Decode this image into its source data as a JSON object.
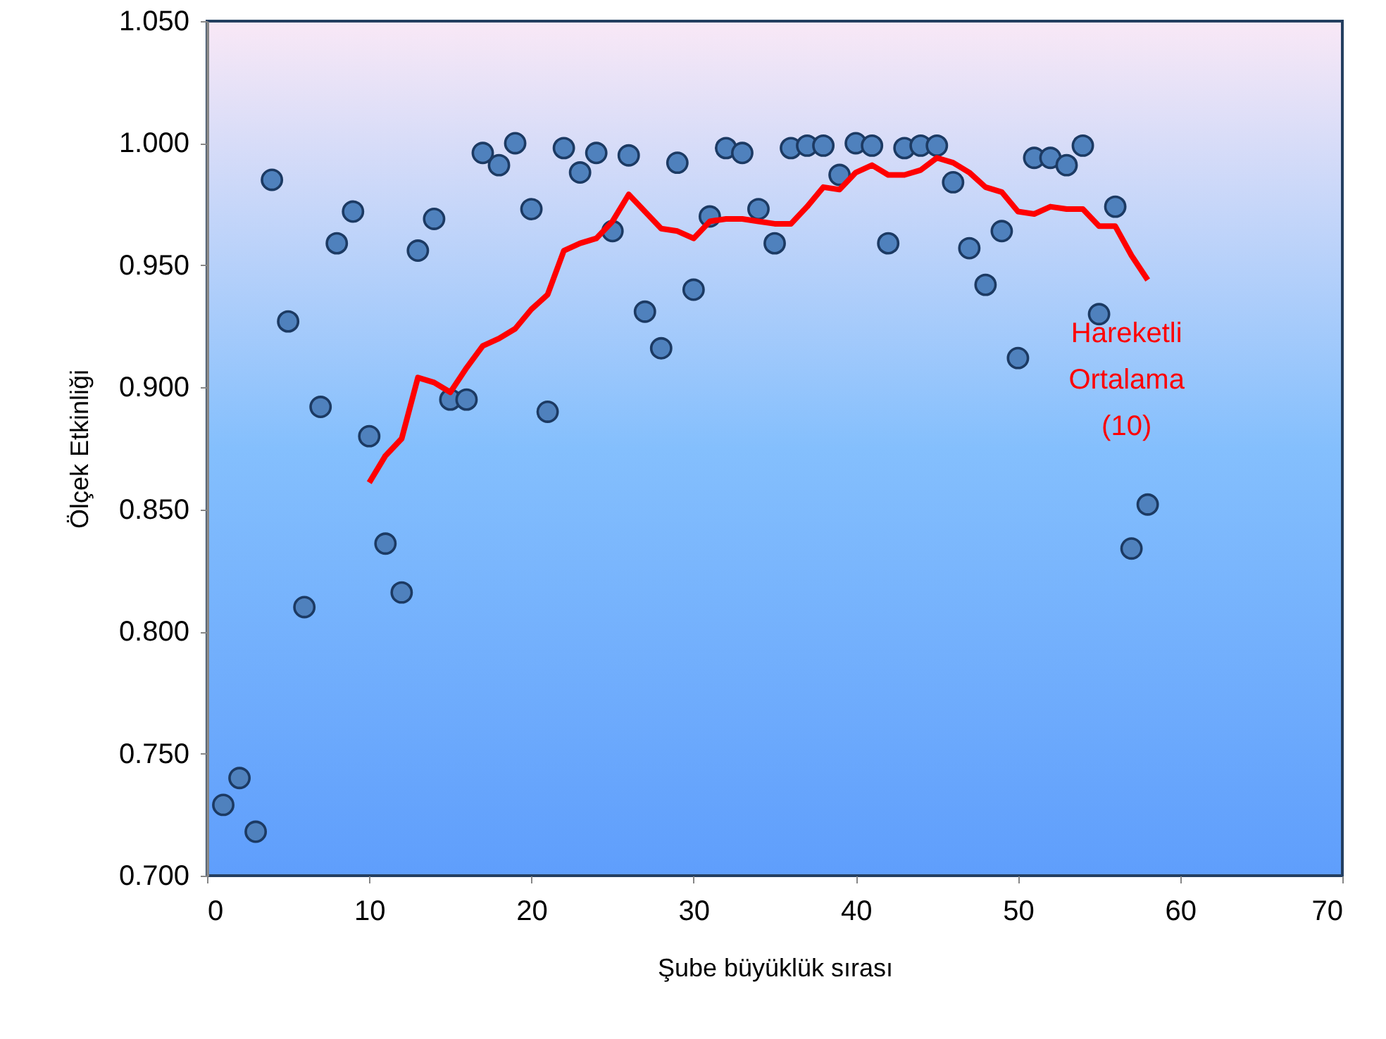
{
  "chart_data": {
    "type": "scatter",
    "xlabel": "Şube büyüklük sırası",
    "ylabel": "Ölçek Etkinliği",
    "xlim": [
      0,
      70
    ],
    "xticks": [
      0,
      10,
      20,
      30,
      40,
      50,
      60,
      70
    ],
    "ylim": [
      0.7,
      1.05
    ],
    "yticks": [
      {
        "value": 0.7,
        "label": "0.700"
      },
      {
        "value": 0.75,
        "label": "0.750"
      },
      {
        "value": 0.8,
        "label": "0.800"
      },
      {
        "value": 0.85,
        "label": "0.850"
      },
      {
        "value": 0.9,
        "label": "0.900"
      },
      {
        "value": 0.95,
        "label": "0.950"
      },
      {
        "value": 1.0,
        "label": "1.000"
      },
      {
        "value": 1.05,
        "label": "1.050"
      }
    ],
    "grid": false,
    "x": [
      1,
      2,
      3,
      4,
      5,
      6,
      7,
      8,
      9,
      10,
      11,
      12,
      13,
      14,
      15,
      16,
      17,
      18,
      19,
      20,
      21,
      22,
      23,
      24,
      25,
      26,
      27,
      28,
      29,
      30,
      31,
      32,
      33,
      34,
      35,
      36,
      37,
      38,
      39,
      40,
      41,
      42,
      43,
      44,
      45,
      46,
      47,
      48,
      49,
      50,
      51,
      52,
      53,
      54,
      55,
      56,
      57,
      58
    ],
    "series": [
      {
        "type": "scatter",
        "color": "#4f81bd",
        "marker": "circle",
        "values": [
          0.729,
          0.74,
          0.718,
          0.985,
          0.927,
          0.81,
          0.892,
          0.959,
          0.972,
          0.88,
          0.836,
          0.816,
          0.956,
          0.969,
          0.895,
          0.895,
          0.996,
          0.991,
          1.0,
          0.973,
          0.89,
          0.998,
          0.988,
          0.996,
          0.964,
          0.995,
          0.931,
          0.916,
          0.992,
          0.94,
          0.97,
          0.998,
          0.996,
          0.973,
          0.959,
          0.998,
          0.999,
          0.999,
          0.987,
          1.0,
          0.999,
          0.959,
          0.998,
          0.999,
          0.999,
          0.984,
          0.957,
          0.942,
          0.964,
          0.912,
          0.994,
          0.994,
          0.991,
          0.999,
          0.93,
          0.974,
          0.834,
          0.852
        ]
      },
      {
        "type": "line",
        "name": "Hareketli Ortalama (10)",
        "color": "#ff0000",
        "line_style": "solid",
        "x": [
          10,
          11,
          12,
          13,
          14,
          15,
          16,
          17,
          18,
          19,
          20,
          21,
          22,
          23,
          24,
          25,
          26,
          27,
          28,
          29,
          30,
          31,
          32,
          33,
          34,
          35,
          36,
          37,
          38,
          39,
          40,
          41,
          42,
          43,
          44,
          45,
          46,
          47,
          48,
          49,
          50,
          51,
          52,
          53,
          54,
          55,
          56,
          57,
          58
        ],
        "values": [
          0.861,
          0.872,
          0.879,
          0.904,
          0.902,
          0.898,
          0.908,
          0.917,
          0.92,
          0.924,
          0.932,
          0.938,
          0.956,
          0.959,
          0.961,
          0.968,
          0.979,
          0.972,
          0.965,
          0.964,
          0.961,
          0.968,
          0.969,
          0.969,
          0.968,
          0.967,
          0.967,
          0.974,
          0.982,
          0.981,
          0.988,
          0.991,
          0.987,
          0.987,
          0.989,
          0.994,
          0.992,
          0.988,
          0.982,
          0.98,
          0.972,
          0.971,
          0.974,
          0.973,
          0.973,
          0.966,
          0.966,
          0.954,
          0.944
        ]
      }
    ]
  }
}
